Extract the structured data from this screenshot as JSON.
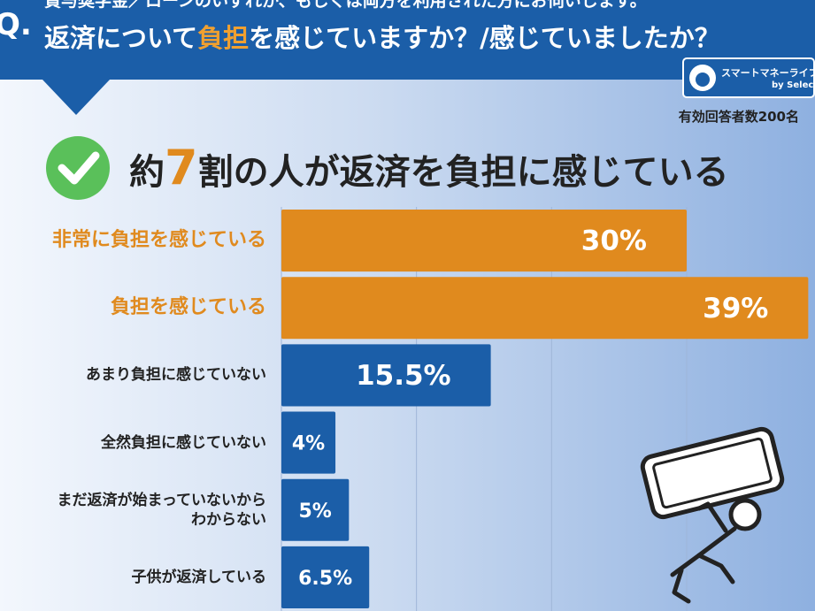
{
  "chart_data": {
    "type": "hbar",
    "question_lead": "貸与奨学金／ローンのいずれか、もしくは両方を利用された方にお伺いします。",
    "title_parts": [
      "返済について",
      "負担",
      "を感じていますか？/感じていましたか？"
    ],
    "logo": {
      "name": "スマートマネーライフ",
      "sub": "by Selectra"
    },
    "respondents": "有効回答者数200名",
    "headline_parts": [
      "約",
      "7",
      "割の人が返済を負担に感じている"
    ],
    "categories": [
      "非常に負担を感じている",
      "負担を感じている",
      "あまり負担に感じていない",
      "全然負担に感じていない",
      "まだ返済が始まっていないから\nわからない",
      "子供が返済している"
    ],
    "category_colors": [
      "#e08a1e",
      "#e08a1e",
      "#222222",
      "#222222",
      "#222222",
      "#222222"
    ],
    "values": [
      30,
      39,
      15.5,
      4,
      5,
      6.5
    ],
    "value_labels": [
      "30%",
      "39%",
      "15.5%",
      "4%",
      "5%",
      "6.5%"
    ],
    "colors": [
      "#e08a1e",
      "#e08a1e",
      "#1b5ea8",
      "#1b5ea8",
      "#1b5ea8",
      "#1b5ea8"
    ],
    "xlim": [
      0,
      39.5
    ],
    "xticks": [
      0,
      10,
      20,
      30
    ],
    "grid": true
  }
}
